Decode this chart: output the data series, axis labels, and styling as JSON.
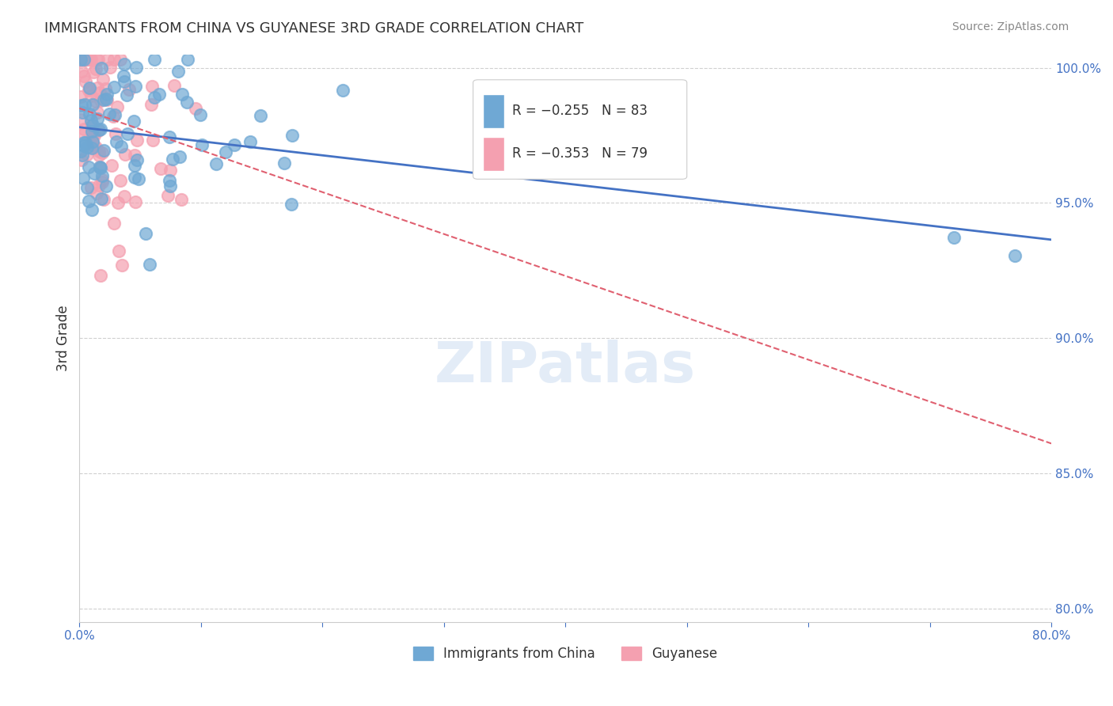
{
  "title": "IMMIGRANTS FROM CHINA VS GUYANESE 3RD GRADE CORRELATION CHART",
  "source": "Source: ZipAtlas.com",
  "xlabel": "",
  "ylabel": "3rd Grade",
  "xlim": [
    0.0,
    0.8
  ],
  "ylim": [
    0.795,
    1.005
  ],
  "xticks": [
    0.0,
    0.1,
    0.2,
    0.3,
    0.4,
    0.5,
    0.6,
    0.7,
    0.8
  ],
  "xticklabels": [
    "0.0%",
    "",
    "",
    "",
    "",
    "",
    "",
    "",
    "80.0%"
  ],
  "yticks": [
    0.8,
    0.85,
    0.9,
    0.95,
    1.0
  ],
  "yticklabels": [
    "80.0%",
    "85.0%",
    "90.0%",
    "95.0%",
    "100.0%"
  ],
  "blue_color": "#6fa8d4",
  "pink_color": "#f4a0b0",
  "blue_line_color": "#4472c4",
  "pink_line_color": "#e06070",
  "legend_R_blue": "R = −0.255",
  "legend_N_blue": "N = 83",
  "legend_R_pink": "R = −0.353",
  "legend_N_pink": "N = 79",
  "watermark": "ZIPatlas",
  "blue_seed": 42,
  "pink_seed": 7,
  "blue_n": 83,
  "pink_n": 79,
  "blue_intercept": 0.978,
  "blue_slope": -0.052,
  "pink_intercept": 0.985,
  "pink_slope": -0.155,
  "background_color": "#ffffff",
  "grid_color": "#d0d0d0",
  "title_color": "#333333",
  "axis_label_color": "#333333",
  "tick_color": "#4472c4",
  "source_color": "#888888"
}
